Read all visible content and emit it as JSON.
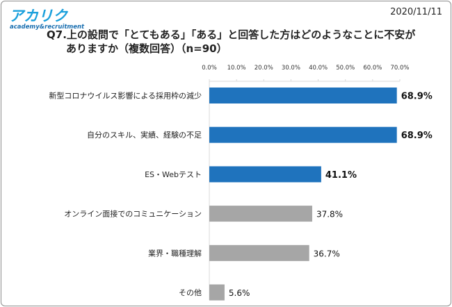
{
  "brand": {
    "logo_text": "アカリク",
    "logo_subtext": "academy&recruitment",
    "logo_color": "#1aa0dc"
  },
  "date": "2020/11/11",
  "question": {
    "line1": "Q7.上の設問で「とてもある」「ある」と回答した方はどのようなことに不安が",
    "line2": "ありますか（複数回答）（n=90）"
  },
  "chart_data": {
    "type": "bar",
    "orientation": "horizontal",
    "categories": [
      "新型コロナウイルス影響による採用枠の減少",
      "自分のスキル、実績、経験の不足",
      "ES・Webテスト",
      "オンライン面接でのコミュニケーション",
      "業界・職種理解",
      "その他"
    ],
    "values": [
      68.9,
      68.9,
      41.1,
      37.8,
      36.7,
      5.6
    ],
    "value_labels": [
      "68.9%",
      "68.9%",
      "41.1%",
      "37.8%",
      "36.7%",
      "5.6%"
    ],
    "highlighted": [
      true,
      true,
      true,
      false,
      false,
      false
    ],
    "xlim": [
      0,
      70
    ],
    "xticks": [
      "0.0%",
      "10.0%",
      "20.0%",
      "30.0%",
      "40.0%",
      "50.0%",
      "60.0%",
      "70.0%"
    ],
    "colors": {
      "highlight": "#1f73bd",
      "normal": "#a6a6a6",
      "axis": "#d9d9d9"
    },
    "axis_position": "top",
    "grid": false
  }
}
